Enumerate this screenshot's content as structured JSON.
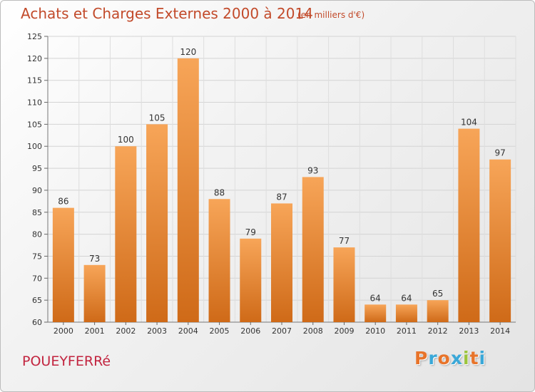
{
  "header": {
    "title": "Achats et Charges Externes 2000 à 2014",
    "subtitle": "(en milliers d'€)"
  },
  "footer": {
    "place": "POUEYFERRé",
    "logo_text": "Proxiti",
    "logo_colors": [
      "#e8742a",
      "#3aa8d8",
      "#e8742a",
      "#3aa8d8",
      "#9bc43c",
      "#e8742a",
      "#3aa8d8"
    ]
  },
  "colors": {
    "bar_top": "#f7a558",
    "bar_bottom": "#cf6a18",
    "text_accent": "#c24a2a",
    "place": "#c2243f"
  },
  "chart_data": {
    "type": "bar",
    "categories": [
      "2000",
      "2001",
      "2002",
      "2003",
      "2004",
      "2005",
      "2006",
      "2007",
      "2008",
      "2009",
      "2010",
      "2011",
      "2012",
      "2013",
      "2014"
    ],
    "values": [
      86,
      73,
      100,
      105,
      120,
      88,
      79,
      87,
      93,
      77,
      64,
      64,
      65,
      104,
      97
    ],
    "ylim": [
      60,
      125
    ],
    "yticks": [
      60,
      65,
      70,
      75,
      80,
      85,
      90,
      95,
      100,
      105,
      110,
      115,
      120,
      125
    ],
    "grid": true,
    "data_labels": true
  }
}
